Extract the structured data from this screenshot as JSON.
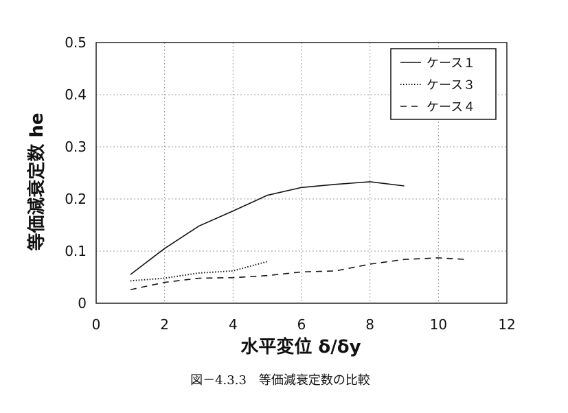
{
  "chart_data": {
    "type": "line",
    "title": "",
    "xlabel": "水平変位 δ/δy",
    "ylabel": "等価減衰定数 he",
    "xlim": [
      0,
      12
    ],
    "ylim": [
      0,
      0.5
    ],
    "xticks": [
      "0",
      "2",
      "4",
      "6",
      "8",
      "10",
      "12"
    ],
    "yticks": [
      "0",
      "0.1",
      "0.2",
      "0.3",
      "0.4",
      "0.5"
    ],
    "grid": true,
    "legend_position": "top-right",
    "series": [
      {
        "name": "ケース１",
        "style": "solid",
        "x": [
          1,
          2,
          3,
          4,
          5,
          6,
          7,
          8,
          9
        ],
        "y": [
          0.055,
          0.105,
          0.148,
          0.177,
          0.207,
          0.222,
          0.228,
          0.233,
          0.225
        ]
      },
      {
        "name": "ケース３",
        "style": "dotted",
        "x": [
          1,
          2,
          3,
          4,
          5
        ],
        "y": [
          0.043,
          0.048,
          0.058,
          0.062,
          0.08
        ]
      },
      {
        "name": "ケース４",
        "style": "dashed",
        "x": [
          1,
          2,
          3,
          4,
          5,
          6,
          7,
          8,
          9,
          10,
          10.8
        ],
        "y": [
          0.026,
          0.04,
          0.048,
          0.049,
          0.053,
          0.06,
          0.062,
          0.075,
          0.084,
          0.087,
          0.084
        ]
      }
    ]
  },
  "caption": "図－4.3.3　等価減衰定数の比較"
}
